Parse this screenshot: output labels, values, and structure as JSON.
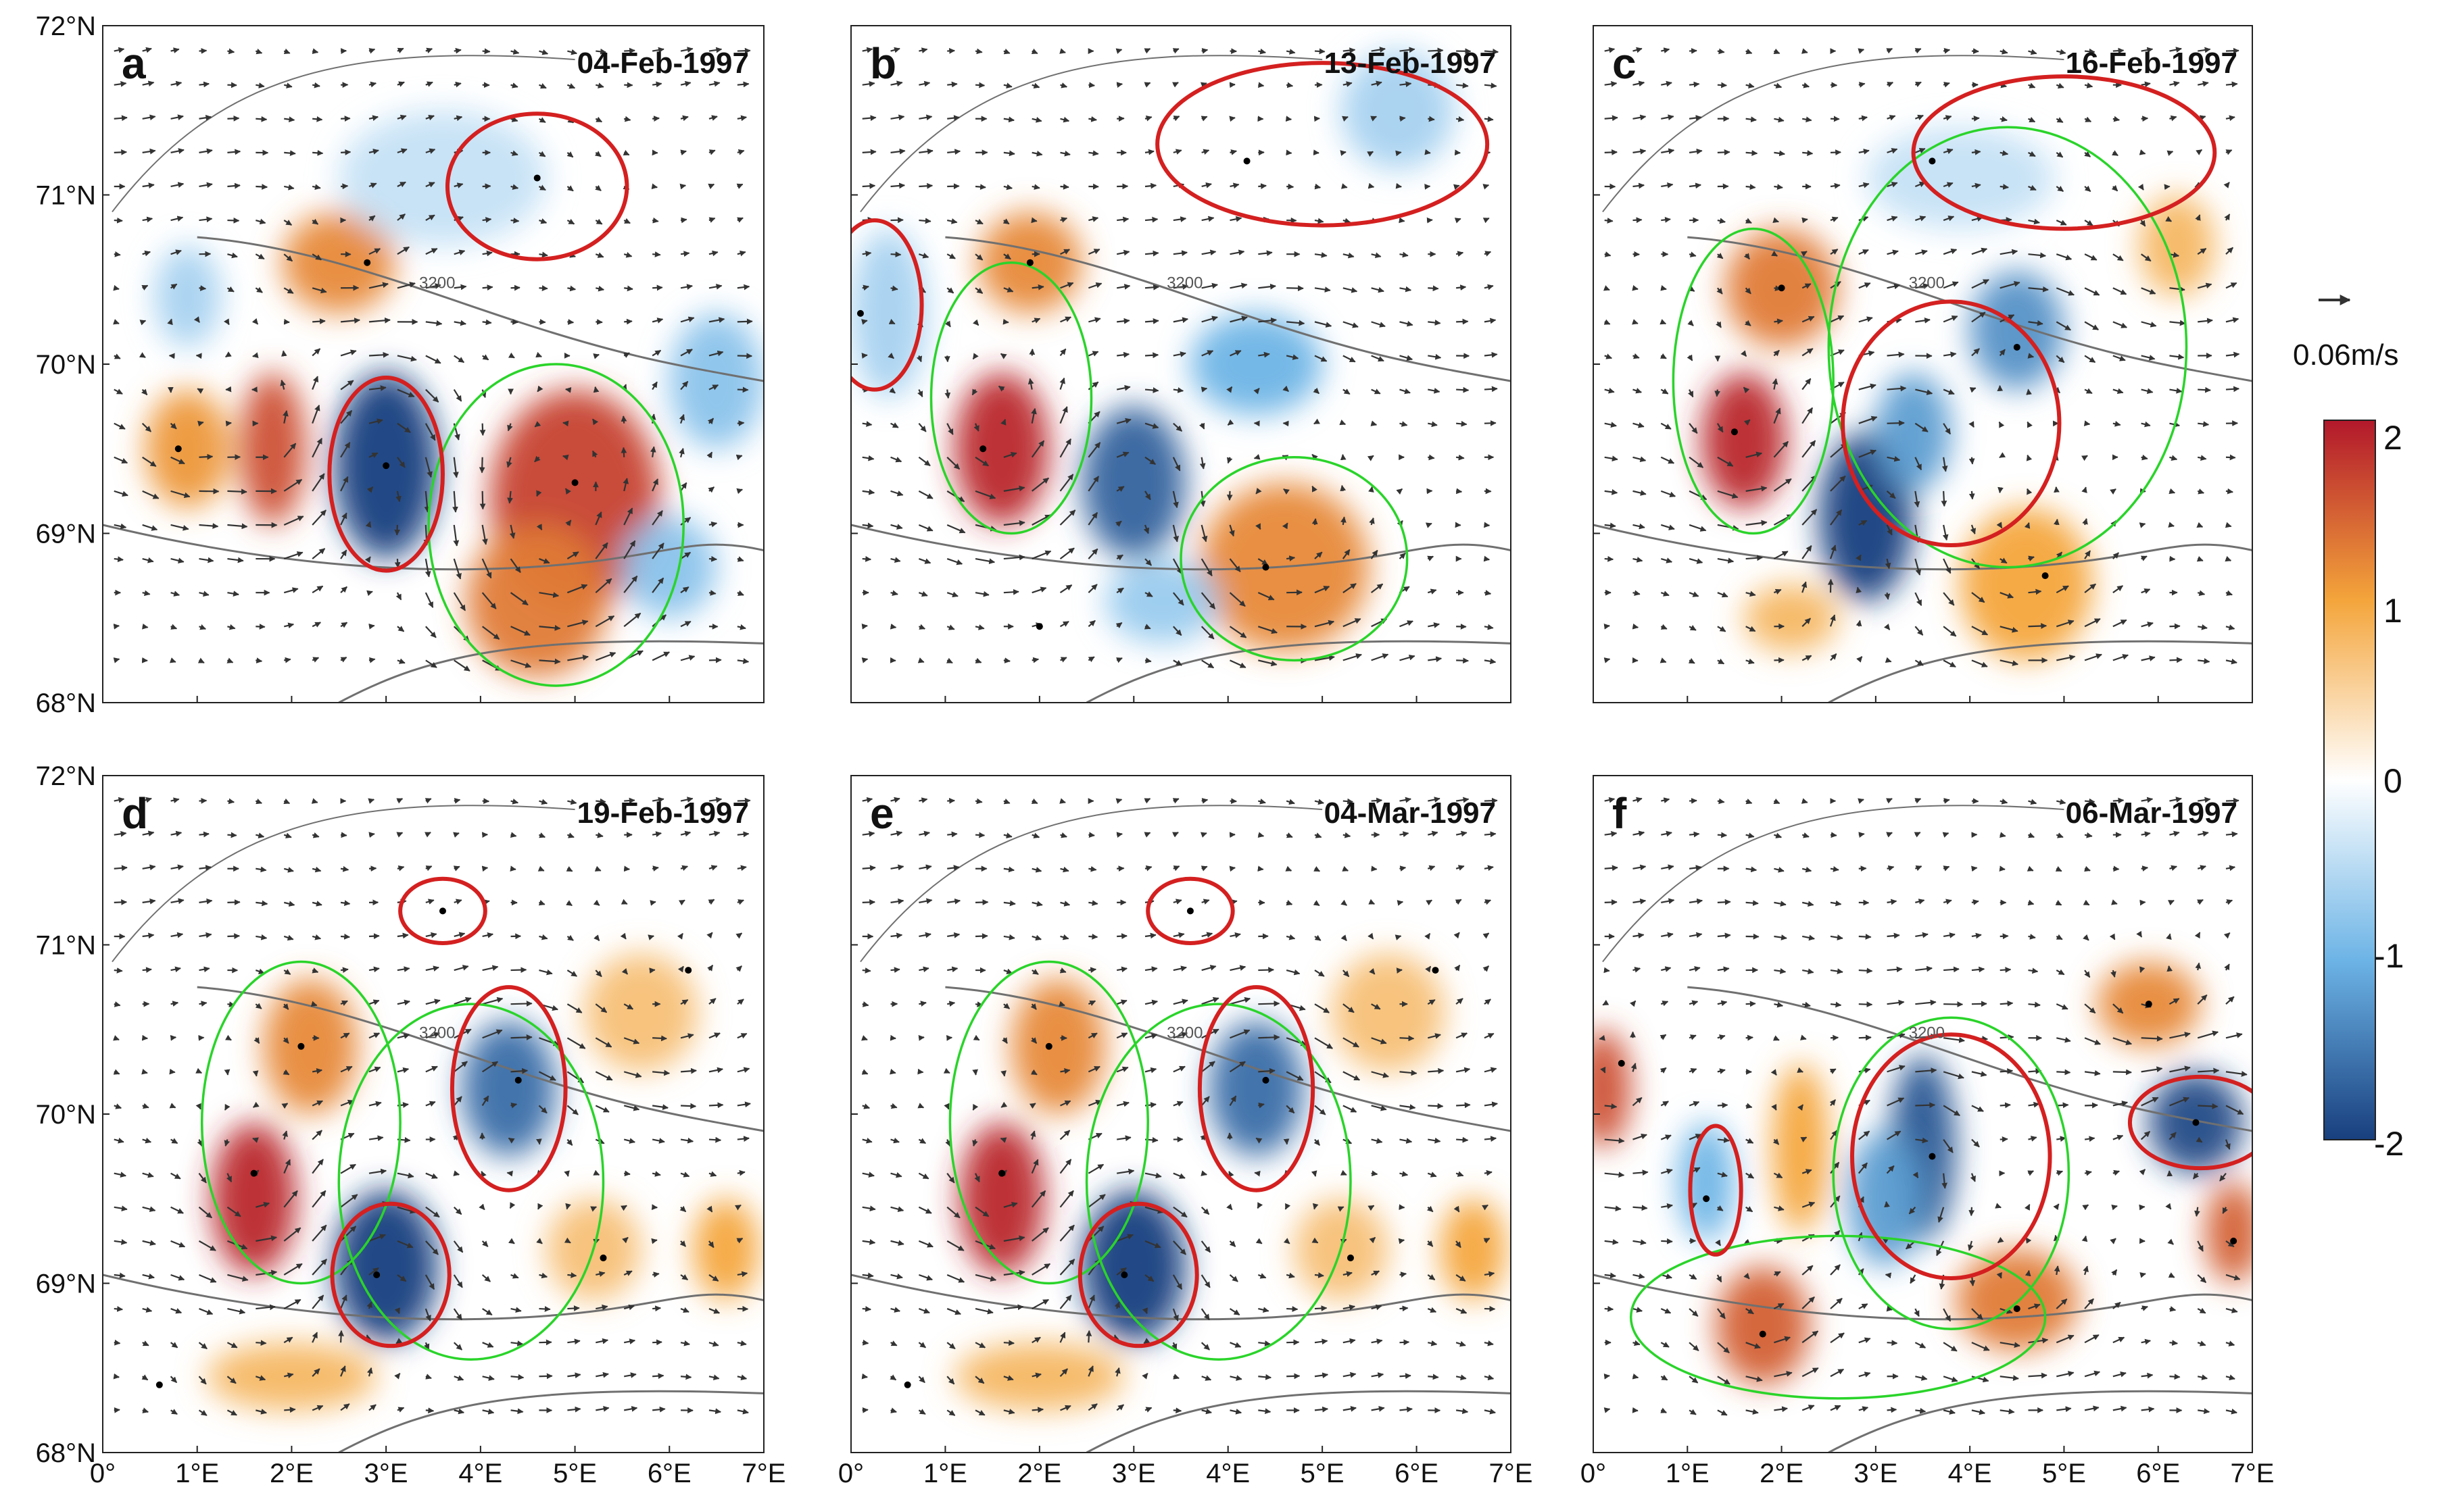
{
  "figure": {
    "lat_min": 68,
    "lat_max": 72,
    "lon_min": 0,
    "lon_max": 7,
    "lat_labels": [
      "72°N",
      "71°N",
      "70°N",
      "69°N",
      "68°N"
    ],
    "lon_labels": [
      "0°",
      "1°E",
      "2°E",
      "3°E",
      "4°E",
      "5°E",
      "6°E",
      "7°E"
    ],
    "contour_label": "3200",
    "colors": {
      "eddy_edge": "#d42020",
      "eddy_outer": "#2ad42a",
      "contour": "#707070",
      "thin_contour": "#5555cc",
      "arrow": "#333333"
    }
  },
  "colorbar": {
    "ticks": [
      "2",
      "1",
      "0",
      "-1",
      "-2"
    ],
    "vmin": -2,
    "vmax": 2,
    "scale_label": "0.06m/s"
  },
  "panels": [
    {
      "letter": "a",
      "date": "04-Feb-1997",
      "blobs": [
        {
          "lon": 5.0,
          "lat": 69.2,
          "value": 1.7,
          "rx": 0.9,
          "ry": 0.65
        },
        {
          "lon": 4.6,
          "lat": 68.6,
          "value": 1.3,
          "rx": 0.75,
          "ry": 0.45
        },
        {
          "lon": 1.8,
          "lat": 69.5,
          "value": 1.6,
          "rx": 0.35,
          "ry": 0.45
        },
        {
          "lon": 0.9,
          "lat": 69.5,
          "value": 1.1,
          "rx": 0.45,
          "ry": 0.35
        },
        {
          "lon": 2.5,
          "lat": 70.6,
          "value": 1.2,
          "rx": 0.6,
          "ry": 0.3
        },
        {
          "lon": 3.0,
          "lat": 69.4,
          "value": -2.0,
          "rx": 0.55,
          "ry": 0.55
        },
        {
          "lon": 3.6,
          "lat": 71.1,
          "value": -0.4,
          "rx": 1.1,
          "ry": 0.4
        },
        {
          "lon": 6.5,
          "lat": 69.9,
          "value": -0.8,
          "rx": 0.5,
          "ry": 0.4
        },
        {
          "lon": 6.0,
          "lat": 68.8,
          "value": -0.8,
          "rx": 0.5,
          "ry": 0.3
        },
        {
          "lon": 0.9,
          "lat": 70.4,
          "value": -0.6,
          "rx": 0.35,
          "ry": 0.3
        }
      ],
      "red_loops": [
        {
          "lon": 4.6,
          "lat": 71.05,
          "rx": 0.95,
          "ry": 0.43
        },
        {
          "lon": 3.0,
          "lat": 69.35,
          "rx": 0.6,
          "ry": 0.57
        }
      ],
      "green_loops": [
        {
          "lon": 4.8,
          "lat": 69.05,
          "rx": 1.35,
          "ry": 0.95
        }
      ],
      "centers": [
        [
          4.6,
          71.1
        ],
        [
          2.8,
          70.6
        ],
        [
          0.8,
          69.5
        ],
        [
          3.0,
          69.4
        ],
        [
          5.0,
          69.3
        ]
      ]
    },
    {
      "letter": "b",
      "date": "13-Feb-1997",
      "blobs": [
        {
          "lon": 1.6,
          "lat": 69.5,
          "value": 1.9,
          "rx": 0.5,
          "ry": 0.45
        },
        {
          "lon": 1.9,
          "lat": 70.6,
          "value": 1.2,
          "rx": 0.55,
          "ry": 0.3
        },
        {
          "lon": 4.6,
          "lat": 68.8,
          "value": 1.2,
          "rx": 0.9,
          "ry": 0.5
        },
        {
          "lon": 3.0,
          "lat": 69.3,
          "value": -1.7,
          "rx": 0.55,
          "ry": 0.45
        },
        {
          "lon": 4.3,
          "lat": 70.0,
          "value": -1.0,
          "rx": 0.7,
          "ry": 0.3
        },
        {
          "lon": 3.3,
          "lat": 68.6,
          "value": -0.7,
          "rx": 0.6,
          "ry": 0.25
        },
        {
          "lon": 0.4,
          "lat": 70.3,
          "value": -0.6,
          "rx": 0.4,
          "ry": 0.5
        },
        {
          "lon": 5.8,
          "lat": 71.5,
          "value": -0.6,
          "rx": 0.6,
          "ry": 0.35
        }
      ],
      "red_loops": [
        {
          "lon": 5.0,
          "lat": 71.3,
          "rx": 1.75,
          "ry": 0.48
        },
        {
          "lon": 0.25,
          "lat": 70.35,
          "rx": 0.5,
          "ry": 0.5
        }
      ],
      "green_loops": [
        {
          "lon": 1.7,
          "lat": 69.8,
          "rx": 0.85,
          "ry": 0.8
        },
        {
          "lon": 4.7,
          "lat": 68.85,
          "rx": 1.2,
          "ry": 0.6
        }
      ],
      "centers": [
        [
          4.2,
          71.2
        ],
        [
          1.9,
          70.6
        ],
        [
          0.1,
          70.3
        ],
        [
          1.4,
          69.5
        ],
        [
          4.4,
          68.8
        ],
        [
          2.0,
          68.45
        ]
      ]
    },
    {
      "letter": "c",
      "date": "16-Feb-1997",
      "blobs": [
        {
          "lon": 1.6,
          "lat": 69.55,
          "value": 1.9,
          "rx": 0.45,
          "ry": 0.4
        },
        {
          "lon": 2.0,
          "lat": 70.45,
          "value": 1.3,
          "rx": 0.6,
          "ry": 0.35
        },
        {
          "lon": 4.6,
          "lat": 68.7,
          "value": 1.0,
          "rx": 0.7,
          "ry": 0.45
        },
        {
          "lon": 2.9,
          "lat": 69.1,
          "value": -2.0,
          "rx": 0.5,
          "ry": 0.5
        },
        {
          "lon": 3.4,
          "lat": 69.6,
          "value": -1.2,
          "rx": 0.4,
          "ry": 0.35
        },
        {
          "lon": 4.5,
          "lat": 70.2,
          "value": -1.3,
          "rx": 0.5,
          "ry": 0.35
        },
        {
          "lon": 3.9,
          "lat": 71.1,
          "value": -0.4,
          "rx": 1.0,
          "ry": 0.3
        },
        {
          "lon": 6.2,
          "lat": 70.7,
          "value": 0.8,
          "rx": 0.4,
          "ry": 0.3
        },
        {
          "lon": 2.1,
          "lat": 68.5,
          "value": 0.8,
          "rx": 0.5,
          "ry": 0.2
        }
      ],
      "red_loops": [
        {
          "lon": 5.0,
          "lat": 71.25,
          "rx": 1.6,
          "ry": 0.45
        },
        {
          "lon": 3.8,
          "lat": 69.65,
          "rx": 1.15,
          "ry": 0.72
        }
      ],
      "green_loops": [
        {
          "lon": 1.7,
          "lat": 69.9,
          "rx": 0.85,
          "ry": 0.9
        },
        {
          "lon": 4.4,
          "lat": 70.1,
          "rx": 1.9,
          "ry": 1.3
        }
      ],
      "centers": [
        [
          3.6,
          71.2
        ],
        [
          2.0,
          70.45
        ],
        [
          4.5,
          70.1
        ],
        [
          1.5,
          69.6
        ],
        [
          4.8,
          68.75
        ]
      ]
    },
    {
      "letter": "d",
      "date": "19-Feb-1997",
      "blobs": [
        {
          "lon": 1.6,
          "lat": 69.5,
          "value": 1.9,
          "rx": 0.45,
          "ry": 0.45
        },
        {
          "lon": 2.2,
          "lat": 70.4,
          "value": 1.2,
          "rx": 0.5,
          "ry": 0.4
        },
        {
          "lon": 3.0,
          "lat": 69.1,
          "value": -2.0,
          "rx": 0.55,
          "ry": 0.45
        },
        {
          "lon": 4.3,
          "lat": 70.15,
          "value": -1.6,
          "rx": 0.5,
          "ry": 0.4
        },
        {
          "lon": 6.6,
          "lat": 69.2,
          "value": 1.0,
          "rx": 0.35,
          "ry": 0.3
        },
        {
          "lon": 5.7,
          "lat": 70.6,
          "value": 0.7,
          "rx": 0.6,
          "ry": 0.35
        },
        {
          "lon": 2.0,
          "lat": 68.45,
          "value": 0.8,
          "rx": 0.9,
          "ry": 0.2
        },
        {
          "lon": 5.2,
          "lat": 69.2,
          "value": 0.7,
          "rx": 0.5,
          "ry": 0.3
        }
      ],
      "red_loops": [
        {
          "lon": 3.6,
          "lat": 71.2,
          "rx": 0.45,
          "ry": 0.19
        },
        {
          "lon": 4.3,
          "lat": 70.15,
          "rx": 0.6,
          "ry": 0.6
        },
        {
          "lon": 3.05,
          "lat": 69.05,
          "rx": 0.62,
          "ry": 0.42
        }
      ],
      "green_loops": [
        {
          "lon": 2.1,
          "lat": 69.95,
          "rx": 1.05,
          "ry": 0.95
        },
        {
          "lon": 3.9,
          "lat": 69.6,
          "rx": 1.4,
          "ry": 1.05
        }
      ],
      "centers": [
        [
          3.6,
          71.2
        ],
        [
          6.2,
          70.85
        ],
        [
          2.1,
          70.4
        ],
        [
          4.4,
          70.2
        ],
        [
          1.6,
          69.65
        ],
        [
          2.9,
          69.05
        ],
        [
          5.3,
          69.15
        ],
        [
          0.6,
          68.4
        ]
      ]
    },
    {
      "letter": "e",
      "date": "04-Mar-1997",
      "blobs": [
        {
          "lon": 1.6,
          "lat": 69.5,
          "value": 1.9,
          "rx": 0.45,
          "ry": 0.45
        },
        {
          "lon": 2.2,
          "lat": 70.4,
          "value": 1.2,
          "rx": 0.5,
          "ry": 0.4
        },
        {
          "lon": 3.0,
          "lat": 69.1,
          "value": -2.0,
          "rx": 0.55,
          "ry": 0.45
        },
        {
          "lon": 4.3,
          "lat": 70.15,
          "value": -1.6,
          "rx": 0.5,
          "ry": 0.4
        },
        {
          "lon": 6.6,
          "lat": 69.2,
          "value": 1.0,
          "rx": 0.35,
          "ry": 0.3
        },
        {
          "lon": 5.7,
          "lat": 70.6,
          "value": 0.7,
          "rx": 0.6,
          "ry": 0.35
        },
        {
          "lon": 2.0,
          "lat": 68.45,
          "value": 0.8,
          "rx": 0.9,
          "ry": 0.2
        },
        {
          "lon": 5.2,
          "lat": 69.2,
          "value": 0.7,
          "rx": 0.5,
          "ry": 0.3
        }
      ],
      "red_loops": [
        {
          "lon": 3.6,
          "lat": 71.2,
          "rx": 0.45,
          "ry": 0.19
        },
        {
          "lon": 4.3,
          "lat": 70.15,
          "rx": 0.6,
          "ry": 0.6
        },
        {
          "lon": 3.05,
          "lat": 69.05,
          "rx": 0.62,
          "ry": 0.42
        }
      ],
      "green_loops": [
        {
          "lon": 2.1,
          "lat": 69.95,
          "rx": 1.05,
          "ry": 0.95
        },
        {
          "lon": 3.9,
          "lat": 69.6,
          "rx": 1.4,
          "ry": 1.05
        }
      ],
      "centers": [
        [
          3.6,
          71.2
        ],
        [
          6.2,
          70.85
        ],
        [
          2.1,
          70.4
        ],
        [
          4.4,
          70.2
        ],
        [
          1.6,
          69.65
        ],
        [
          2.9,
          69.05
        ],
        [
          5.3,
          69.15
        ],
        [
          0.6,
          68.4
        ]
      ]
    },
    {
      "letter": "f",
      "date": "06-Mar-1997",
      "blobs": [
        {
          "lon": 3.5,
          "lat": 69.8,
          "value": -1.8,
          "rx": 0.35,
          "ry": 0.55
        },
        {
          "lon": 3.1,
          "lat": 69.5,
          "value": -1.2,
          "rx": 0.4,
          "ry": 0.4
        },
        {
          "lon": 6.4,
          "lat": 69.95,
          "value": -1.9,
          "rx": 0.5,
          "ry": 0.3
        },
        {
          "lon": 1.2,
          "lat": 69.6,
          "value": -1.0,
          "rx": 0.3,
          "ry": 0.35
        },
        {
          "lon": 1.8,
          "lat": 68.75,
          "value": 1.5,
          "rx": 0.5,
          "ry": 0.35
        },
        {
          "lon": 4.5,
          "lat": 68.9,
          "value": 1.3,
          "rx": 0.65,
          "ry": 0.3
        },
        {
          "lon": 5.9,
          "lat": 70.65,
          "value": 1.2,
          "rx": 0.55,
          "ry": 0.25
        },
        {
          "lon": 6.8,
          "lat": 69.3,
          "value": 1.5,
          "rx": 0.3,
          "ry": 0.3
        },
        {
          "lon": 0.1,
          "lat": 70.15,
          "value": 1.6,
          "rx": 0.3,
          "ry": 0.35
        },
        {
          "lon": 2.2,
          "lat": 69.8,
          "value": 1.0,
          "rx": 0.3,
          "ry": 0.5
        }
      ],
      "red_loops": [
        {
          "lon": 3.8,
          "lat": 69.75,
          "rx": 1.05,
          "ry": 0.72
        },
        {
          "lon": 6.45,
          "lat": 69.95,
          "rx": 0.75,
          "ry": 0.27
        },
        {
          "lon": 1.3,
          "lat": 69.55,
          "rx": 0.27,
          "ry": 0.38
        }
      ],
      "green_loops": [
        {
          "lon": 3.8,
          "lat": 69.65,
          "rx": 1.25,
          "ry": 0.92
        },
        {
          "lon": 2.6,
          "lat": 68.8,
          "rx": 2.2,
          "ry": 0.48
        }
      ],
      "centers": [
        [
          5.9,
          70.65
        ],
        [
          3.6,
          69.75
        ],
        [
          6.4,
          69.95
        ],
        [
          1.2,
          69.5
        ],
        [
          6.8,
          69.25
        ],
        [
          1.8,
          68.7
        ],
        [
          4.5,
          68.85
        ],
        [
          0.3,
          70.3
        ]
      ]
    }
  ]
}
